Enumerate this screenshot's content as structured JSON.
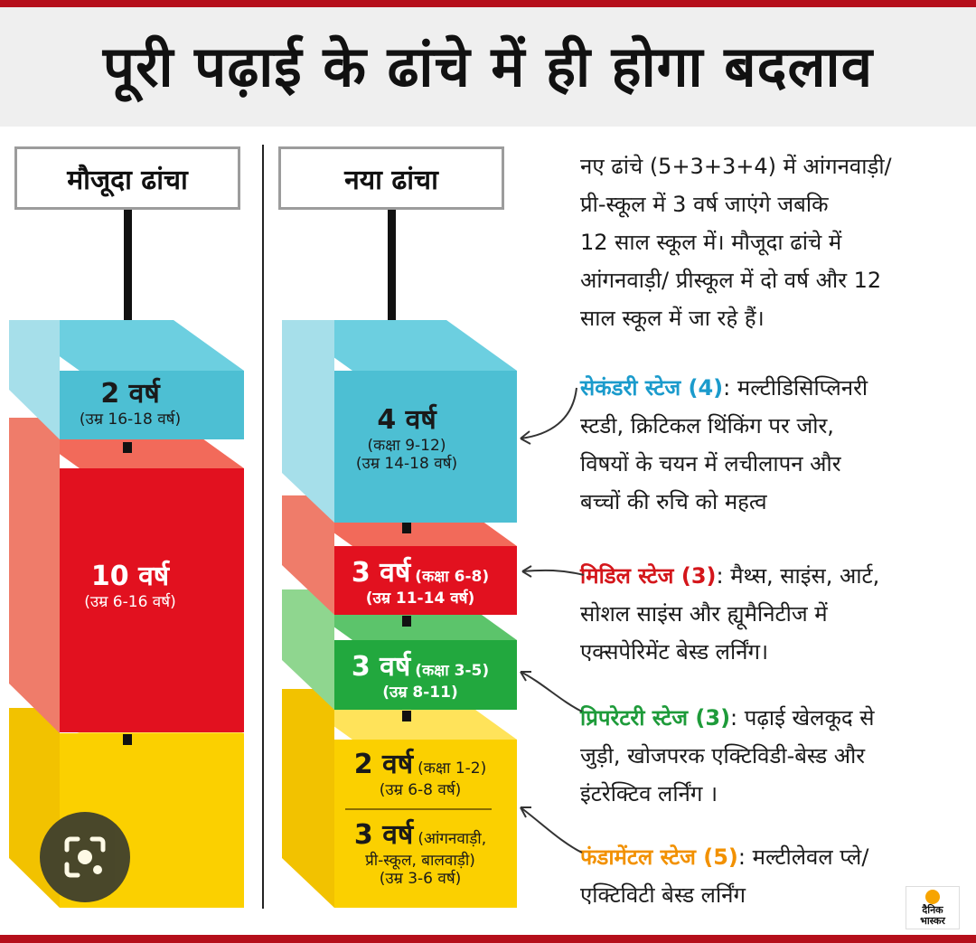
{
  "title": "पूरी पढ़ाई के ढांचे में ही होगा बदलाव",
  "current_label": "मौजूदा ढांचा",
  "new_label": "नया ढांचा",
  "current": {
    "b2_main": "2 वर्ष",
    "b2_sub": "(उम्र 16-18 वर्ष)",
    "b10_main": "10 वर्ष",
    "b10_sub": "(उम्र 6-16 वर्ष)"
  },
  "new": {
    "s4_main": "4 वर्ष",
    "s4_class": "(कक्षा 9-12)",
    "s4_age": "(उम्र 14-18 वर्ष)",
    "m3_main": "3 वर्ष",
    "m3_class": "(कक्षा 6-8)",
    "m3_age": "(उम्र 11-14 वर्ष)",
    "p3_main": "3 वर्ष",
    "p3_class": "(कक्षा 3-5)",
    "p3_age": "(उम्र 8-11)",
    "f2_main": "2 वर्ष",
    "f2_class": "(कक्षा 1-2)",
    "f2_age": "(उम्र 6-8 वर्ष)",
    "f3_main": "3 वर्ष",
    "f3_class1": "(आंगनवाड़ी,",
    "f3_class2": "प्री-स्कूल, बालवाड़ी)",
    "f3_age": "(उम्र 3-6 वर्ष)"
  },
  "intro": [
    "नए ढांचे (5+3+3+4) में आंगनवाड़ी/",
    "प्री-स्कूल में 3 वर्ष जाएंगे जबकि",
    "12 साल स्कूल में। मौजूदा ढांचे में",
    "आंगनवाड़ी/ प्रीस्कूल में दो वर्ष और 12",
    "साल स्कूल में जा रहे हैं।"
  ],
  "stages": {
    "secondary_name": "सेकंडरी स्टेज (4)",
    "secondary_text": ": मल्टीडिसिप्लिनरी",
    "secondary_lines": [
      "स्टडी, क्रिटिकल थिंकिंग पर जोर,",
      "विषयों के चयन में लचीलापन और",
      "बच्चों की रुचि को महत्व"
    ],
    "middle_name": "मिडिल स्टेज (3)",
    "middle_text": ": मैथ्स, साइंस, आर्ट,",
    "middle_lines": [
      "सोशल साइंस और ह्यूमैनिटीज में",
      "एक्सपेरिमेंट बेस्ड लर्निंग।"
    ],
    "preparatory_name": "प्रिपरेटरी स्टेज (3)",
    "preparatory_text": ": पढ़ाई खेलकूद से",
    "preparatory_lines": [
      "जुड़ी, खोजपरक एक्टिविडी-बेस्ड और",
      "इंटरेक्टिव  लर्निंग ।"
    ],
    "foundational_name": "फंडामेंटल स्टेज (5)",
    "foundational_text": ": मल्टीलेवल प्ले/",
    "foundational_lines": [
      "एक्टिविटी बेस्ड लर्निंग"
    ]
  },
  "brand_line1": "दैनिक",
  "brand_line2": "भास्कर",
  "colors": {
    "teal": "#4dbfd3",
    "red": "#e2111f",
    "green": "#22a83e",
    "yellow": "#fbd000",
    "secondary_label": "#1b9bcc",
    "middle_label": "#d4161b",
    "preparatory_label": "#1e9b3a",
    "foundational_label": "#f29100"
  }
}
